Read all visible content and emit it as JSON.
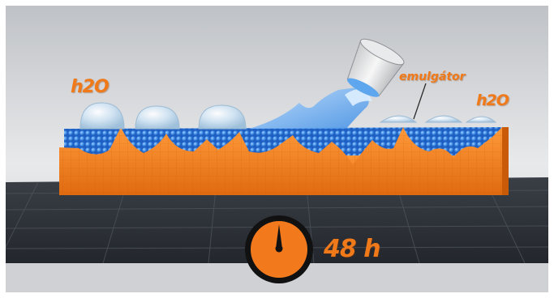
{
  "labels": {
    "water_left": "h2O",
    "water_right": "h2O",
    "emulsifier": "emulgátor",
    "elapsed_time": "48 h"
  },
  "icons": {
    "timer": "stopwatch-gauge-icon",
    "bucket": "bucket-icon"
  },
  "colors": {
    "accent_orange": "#f07a1a",
    "water_blue": "#3a8ee8",
    "floor": "#2c3138",
    "background": "#d9dbde"
  }
}
